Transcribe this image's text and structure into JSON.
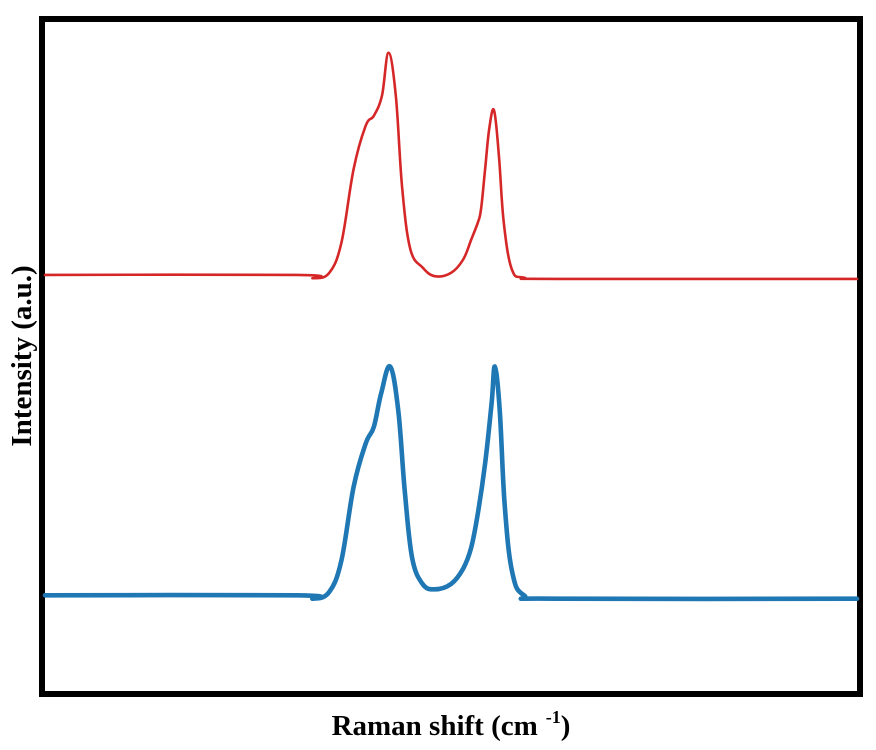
{
  "chart_data": {
    "type": "line",
    "title": "",
    "xlabel": "Raman shift (cm",
    "xlabel_superscript": "-1",
    "xlabel_close": ")",
    "ylabel": "Intensity (a.u.)",
    "xlim": [
      0,
      100
    ],
    "ylim": [
      0,
      100
    ],
    "x_ticks_shown": false,
    "y_ticks_shown": false,
    "grid": false,
    "legend": "none",
    "series": [
      {
        "color": "#d62728",
        "points": [
          [
            0,
            62.2
          ],
          [
            31,
            62.2
          ],
          [
            33,
            61.7
          ],
          [
            35,
            62.5
          ],
          [
            36.5,
            67
          ],
          [
            38,
            78
          ],
          [
            39.5,
            84.5
          ],
          [
            40.5,
            86
          ],
          [
            41.5,
            89
          ],
          [
            42.3,
            95.4
          ],
          [
            43.2,
            89
          ],
          [
            44,
            75
          ],
          [
            45,
            66
          ],
          [
            46.5,
            63.3
          ],
          [
            48,
            62
          ],
          [
            50,
            62.5
          ],
          [
            51.5,
            64.5
          ],
          [
            52.5,
            67.5
          ],
          [
            53.3,
            70
          ],
          [
            53.7,
            72
          ],
          [
            54.2,
            78
          ],
          [
            54.7,
            84
          ],
          [
            55.3,
            86.8
          ],
          [
            55.9,
            80
          ],
          [
            56.5,
            70
          ],
          [
            57.5,
            63
          ],
          [
            59,
            61.8
          ],
          [
            63,
            61.6
          ],
          [
            100,
            61.6
          ]
        ]
      },
      {
        "color": "#1f77b4",
        "points": [
          [
            0,
            14.3
          ],
          [
            31,
            14.3
          ],
          [
            33,
            13.8
          ],
          [
            35,
            14.8
          ],
          [
            36.5,
            19.5
          ],
          [
            38,
            30.5
          ],
          [
            39.5,
            37
          ],
          [
            40.5,
            39.5
          ],
          [
            41.4,
            44.5
          ],
          [
            42.5,
            48.5
          ],
          [
            43.5,
            42
          ],
          [
            44.3,
            30
          ],
          [
            45.2,
            20
          ],
          [
            46.5,
            16
          ],
          [
            48,
            15.2
          ],
          [
            50,
            16
          ],
          [
            51.5,
            18.3
          ],
          [
            52.5,
            21.5
          ],
          [
            53.3,
            26.5
          ],
          [
            54.2,
            34
          ],
          [
            55,
            43
          ],
          [
            55.4,
            48.5
          ],
          [
            56,
            42
          ],
          [
            56.6,
            28
          ],
          [
            57.5,
            18
          ],
          [
            59,
            14.3
          ],
          [
            63,
            13.8
          ],
          [
            100,
            13.8
          ]
        ]
      }
    ]
  }
}
